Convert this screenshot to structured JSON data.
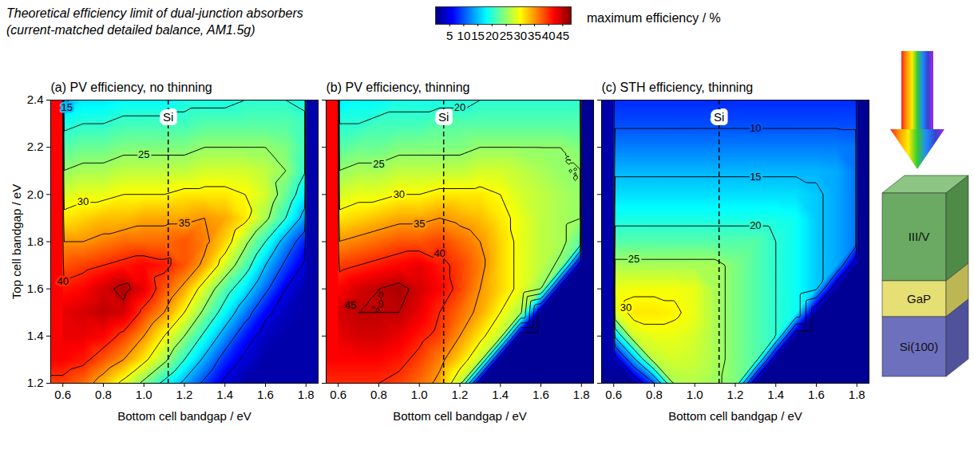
{
  "title": "Theoretical efficiency limit of dual-junction absorbers",
  "subtitle": "(current-matched detailed balance, AM1.5g)",
  "colorbar": {
    "label": "maximum efficiency / %",
    "range": [
      0,
      48
    ],
    "ticks": [
      5,
      10,
      15,
      20,
      25,
      30,
      35,
      40,
      45
    ]
  },
  "diagram": {
    "layers": [
      "III/V",
      "GaP",
      "Si(100)"
    ]
  },
  "chart_data": [
    {
      "type": "heatmap",
      "title": "(a) PV efficiency, no thinning",
      "xlabel": "Bottom cell bandgap / eV",
      "ylabel": "Top cell bandgap / eV",
      "xlim": [
        0.54,
        1.86
      ],
      "ylim": [
        1.2,
        2.4
      ],
      "xticks": [
        0.6,
        0.8,
        {
          "value": 1,
          "label": "1.0"
        },
        1.2,
        1.4,
        1.6,
        1.8
      ],
      "yticks": [
        1.2,
        1.4,
        1.6,
        1.8,
        {
          "value": 2,
          "label": "2.0"
        },
        2.2,
        2.4
      ],
      "x": [
        0.6,
        0.7,
        0.8,
        0.9,
        1.0,
        1.1,
        1.2,
        1.3,
        1.4,
        1.5,
        1.6,
        1.7,
        1.8
      ],
      "y": [
        1.2,
        1.3,
        1.4,
        1.5,
        1.6,
        1.7,
        1.8,
        1.9,
        2.0,
        2.1,
        2.2,
        2.3,
        2.4
      ],
      "values": [
        [
          39,
          37,
          33,
          29,
          24,
          19,
          14,
          9,
          4,
          2,
          2,
          2,
          2
        ],
        [
          42,
          41,
          38,
          35,
          31,
          26,
          20,
          14,
          8,
          4,
          2,
          2,
          2
        ],
        [
          43,
          43,
          42,
          39,
          35,
          30,
          25,
          19,
          13,
          7,
          3,
          2,
          2
        ],
        [
          43,
          44,
          45,
          44,
          39,
          35,
          30,
          24,
          18,
          12,
          6,
          3,
          2
        ],
        [
          41,
          42,
          44,
          46,
          43,
          38,
          34,
          28,
          22,
          17,
          11,
          5,
          2
        ],
        [
          38,
          39,
          40,
          41,
          42,
          41,
          38,
          34,
          28,
          22,
          15,
          9,
          4
        ],
        [
          35,
          35,
          36,
          37,
          37,
          37,
          38,
          36,
          32,
          26,
          20,
          13,
          7
        ],
        [
          31,
          32,
          33,
          33,
          34,
          34,
          34,
          35,
          34,
          31,
          26,
          20,
          13
        ],
        [
          28,
          29,
          29,
          30,
          30,
          30,
          31,
          31,
          31,
          30,
          28,
          23,
          17
        ],
        [
          25,
          26,
          26,
          27,
          27,
          27,
          27,
          28,
          28,
          28,
          27,
          25,
          20
        ],
        [
          22,
          23,
          23,
          24,
          24,
          24,
          24,
          25,
          25,
          25,
          25,
          24,
          21
        ],
        [
          19,
          20,
          20,
          21,
          21,
          21,
          21,
          22,
          22,
          22,
          22,
          22,
          21
        ],
        [
          14,
          17,
          17,
          18,
          18,
          18,
          19,
          19,
          19,
          20,
          20,
          20,
          19
        ]
      ],
      "contour_levels": [
        5,
        10,
        15,
        20,
        25,
        30,
        35,
        40,
        45
      ],
      "contour_labels": [
        {
          "x": 0.62,
          "y": 2.37,
          "value": 15
        },
        {
          "x": 1.0,
          "y": 2.17,
          "value": 25
        },
        {
          "x": 0.7,
          "y": 1.97,
          "value": 30
        },
        {
          "x": 1.2,
          "y": 1.88,
          "value": 35
        },
        {
          "x": 0.6,
          "y": 1.63,
          "value": 40
        }
      ],
      "reference_line": {
        "x": 1.12,
        "label": "Si"
      }
    },
    {
      "type": "heatmap",
      "title": "(b) PV efficiency, thinning",
      "xlabel": "Bottom cell bandgap / eV",
      "xlim": [
        0.54,
        1.86
      ],
      "ylim": [
        1.2,
        2.4
      ],
      "xticks": [
        0.6,
        0.8,
        {
          "value": 1,
          "label": "1.0"
        },
        1.2,
        1.4,
        1.6,
        1.8
      ],
      "yticks": [
        1.2,
        1.4,
        1.6,
        1.8,
        {
          "value": 2,
          "label": "2.0"
        },
        2.2,
        2.4
      ],
      "tick_labels": "x",
      "x": [
        0.6,
        0.7,
        0.8,
        0.9,
        1.0,
        1.1,
        1.2,
        1.3,
        1.4,
        1.5,
        1.6,
        1.7,
        1.8
      ],
      "y": [
        1.2,
        1.3,
        1.4,
        1.5,
        1.6,
        1.7,
        1.8,
        1.9,
        2.0,
        2.1,
        2.2,
        2.3,
        2.4
      ],
      "values": [
        [
          40,
          40,
          40,
          39,
          37,
          34,
          27,
          1,
          1,
          1,
          1,
          1,
          1
        ],
        [
          42,
          42,
          42,
          41,
          39,
          36,
          32,
          27,
          1,
          1,
          1,
          1,
          1
        ],
        [
          43,
          44,
          44,
          43,
          41,
          39,
          35,
          31,
          27,
          1,
          1,
          1,
          1
        ],
        [
          44,
          45,
          45,
          45,
          43,
          40,
          37,
          34,
          30,
          26,
          1,
          1,
          1
        ],
        [
          42,
          44,
          45,
          46,
          44,
          42,
          39,
          35,
          32,
          29,
          25,
          1,
          1
        ],
        [
          39,
          40,
          41,
          42,
          43,
          41,
          39,
          36,
          32,
          29,
          27,
          24,
          1
        ],
        [
          35,
          36,
          37,
          38,
          38,
          39,
          37,
          35,
          32,
          29,
          27,
          26,
          22
        ],
        [
          31,
          32,
          33,
          34,
          34,
          35,
          34,
          33,
          31,
          29,
          27,
          26,
          25
        ],
        [
          28,
          29,
          29,
          30,
          30,
          31,
          31,
          31,
          30,
          28,
          27,
          26,
          25
        ],
        [
          25,
          26,
          26,
          27,
          27,
          27,
          27,
          28,
          28,
          27,
          26,
          25,
          25
        ],
        [
          22,
          23,
          23,
          24,
          24,
          24,
          24,
          25,
          25,
          25,
          25,
          25,
          24
        ],
        [
          20,
          20,
          21,
          21,
          21,
          22,
          22,
          22,
          22,
          22,
          22,
          22,
          22
        ],
        [
          17,
          18,
          18,
          19,
          19,
          19,
          19,
          20,
          20,
          20,
          20,
          20,
          20
        ]
      ],
      "contour_levels": [
        5,
        10,
        15,
        20,
        25,
        30,
        35,
        40,
        45
      ],
      "contour_labels": [
        {
          "x": 1.2,
          "y": 2.37,
          "value": 20
        },
        {
          "x": 0.8,
          "y": 2.13,
          "value": 25
        },
        {
          "x": 0.9,
          "y": 2.0,
          "value": 30
        },
        {
          "x": 1.0,
          "y": 1.875,
          "value": 35
        },
        {
          "x": 1.1,
          "y": 1.75,
          "value": 40
        },
        {
          "x": 0.66,
          "y": 1.53,
          "value": 45
        }
      ],
      "reference_line": {
        "x": 1.12,
        "label": "Si"
      }
    },
    {
      "type": "heatmap",
      "title": "(c) STH efficiency, thinning",
      "xlabel": "Bottom cell bandgap / eV",
      "xlim": [
        0.54,
        1.86
      ],
      "ylim": [
        1.2,
        2.4
      ],
      "xticks": [
        0.6,
        0.8,
        {
          "value": 1,
          "label": "1.0"
        },
        1.2,
        1.4,
        1.6,
        1.8
      ],
      "yticks": [
        1.2,
        1.4,
        1.6,
        1.8,
        {
          "value": 2,
          "label": "2.0"
        },
        2.2,
        2.4
      ],
      "tick_labels": "x",
      "x": [
        0.6,
        0.7,
        0.8,
        0.9,
        1.0,
        1.1,
        1.2,
        1.3,
        1.4,
        1.5,
        1.6,
        1.7,
        1.8
      ],
      "y": [
        1.2,
        1.3,
        1.4,
        1.5,
        1.6,
        1.7,
        1.8,
        1.9,
        2.0,
        2.1,
        2.2,
        2.3,
        2.4
      ],
      "values": [
        [
          1,
          1,
          10,
          26,
          26.5,
          25.5,
          24,
          1,
          1,
          1,
          1,
          1,
          1
        ],
        [
          2,
          14,
          27,
          28,
          27.5,
          26,
          24,
          22,
          1,
          1,
          1,
          1,
          1
        ],
        [
          15,
          28,
          29,
          29,
          28,
          26,
          24,
          22,
          20,
          1,
          1,
          1,
          1
        ],
        [
          28,
          31,
          31,
          30.5,
          29,
          26,
          24,
          22,
          20,
          18.5,
          1,
          1,
          1
        ],
        [
          29,
          29.5,
          29.5,
          29.5,
          29,
          26,
          24,
          22,
          20,
          18.5,
          15.5,
          1,
          1
        ],
        [
          26,
          26,
          26,
          26,
          26,
          26,
          24,
          22,
          20,
          18.5,
          15.5,
          14,
          1
        ],
        [
          22,
          22,
          22,
          22,
          22,
          22,
          22,
          22,
          20,
          18.5,
          15.5,
          14,
          11.5
        ],
        [
          19,
          19,
          19,
          19,
          19,
          19,
          19,
          19,
          19,
          18.5,
          15.5,
          14,
          11.5
        ],
        [
          16.5,
          16.5,
          16.5,
          16.5,
          16.5,
          16.5,
          16.5,
          16.5,
          16.5,
          16.5,
          15.5,
          14,
          11.5
        ],
        [
          14.5,
          14.5,
          14.5,
          14.5,
          14.5,
          14.5,
          14.5,
          14.5,
          14.5,
          14.5,
          14.5,
          14,
          11.5
        ],
        [
          12,
          12,
          12,
          12,
          12,
          12,
          12,
          12,
          12,
          12,
          12,
          12,
          11.5
        ],
        [
          9.5,
          9.5,
          9.5,
          9.5,
          9.5,
          9.5,
          9.5,
          9.5,
          9.5,
          9.5,
          9.5,
          9.5,
          9.5
        ],
        [
          8,
          8,
          8,
          8,
          8,
          8,
          8,
          8,
          8,
          8,
          8,
          8,
          8
        ]
      ],
      "contour_levels": [
        5,
        10,
        15,
        20,
        25,
        30
      ],
      "contour_labels": [
        {
          "x": 1.3,
          "y": 2.28,
          "value": 10
        },
        {
          "x": 1.3,
          "y": 2.075,
          "value": 15
        },
        {
          "x": 1.3,
          "y": 1.867,
          "value": 20
        },
        {
          "x": 0.7,
          "y": 1.725,
          "value": 25
        },
        {
          "x": 0.66,
          "y": 1.52,
          "value": 30
        }
      ],
      "reference_line": {
        "x": 1.12,
        "label": "Si"
      }
    }
  ]
}
